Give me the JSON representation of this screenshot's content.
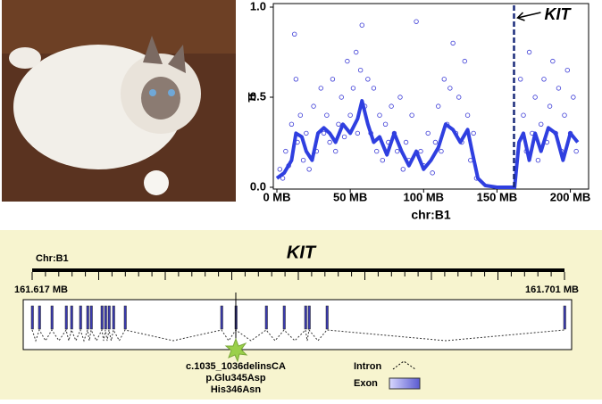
{
  "chart_data": {
    "type": "scatter",
    "xlabel": "chr:B1",
    "ylabel": "π",
    "xlim": [
      0,
      210
    ],
    "ylim": [
      0,
      1
    ],
    "xticks": [
      {
        "value": 0,
        "label": "0 MB"
      },
      {
        "value": 50,
        "label": "50 MB"
      },
      {
        "value": 100,
        "label": "100 MB"
      },
      {
        "value": 150,
        "label": "150 MB"
      },
      {
        "value": 200,
        "label": "200 MB"
      }
    ],
    "yticks": [
      {
        "value": 0,
        "label": "0.0"
      },
      {
        "value": 0.5,
        "label": "0.5"
      },
      {
        "value": 1,
        "label": "1.0"
      }
    ],
    "series": [
      {
        "mode": "points",
        "color": "#3a3ad6",
        "x": [
          2,
          4,
          6,
          8,
          10,
          12,
          13,
          14,
          16,
          18,
          20,
          22,
          25,
          27,
          30,
          32,
          34,
          36,
          38,
          40,
          42,
          44,
          46,
          48,
          50,
          52,
          54,
          55,
          57,
          58,
          60,
          62,
          64,
          66,
          68,
          70,
          72,
          74,
          76,
          78,
          80,
          82,
          84,
          86,
          88,
          90,
          92,
          95,
          98,
          100,
          103,
          106,
          108,
          110,
          112,
          114,
          116,
          118,
          120,
          122,
          124,
          126,
          128,
          130,
          132,
          134,
          136,
          166,
          168,
          170,
          172,
          174,
          176,
          178,
          180,
          182,
          184,
          186,
          188,
          190,
          192,
          194,
          196,
          198,
          200,
          202,
          204
        ],
        "values": [
          0.1,
          0.05,
          0.2,
          0.12,
          0.35,
          0.85,
          0.6,
          0.25,
          0.4,
          0.15,
          0.3,
          0.1,
          0.45,
          0.2,
          0.55,
          0.3,
          0.4,
          0.25,
          0.6,
          0.2,
          0.35,
          0.5,
          0.28,
          0.7,
          0.4,
          0.55,
          0.75,
          0.3,
          0.65,
          0.9,
          0.45,
          0.6,
          0.3,
          0.55,
          0.2,
          0.4,
          0.15,
          0.35,
          0.25,
          0.45,
          0.3,
          0.2,
          0.5,
          0.1,
          0.25,
          0.15,
          0.4,
          0.92,
          0.2,
          0.12,
          0.3,
          0.08,
          0.25,
          0.45,
          0.2,
          0.6,
          0.35,
          0.55,
          0.8,
          0.3,
          0.5,
          0.25,
          0.7,
          0.4,
          0.15,
          0.3,
          0.05,
          0.6,
          0.4,
          0.2,
          0.75,
          0.3,
          0.5,
          0.15,
          0.35,
          0.6,
          0.25,
          0.45,
          0.7,
          0.3,
          0.55,
          0.2,
          0.4,
          0.65,
          0.3,
          0.5,
          0.2
        ]
      },
      {
        "mode": "line",
        "color": "#2f3fe0",
        "x": [
          0,
          5,
          10,
          13,
          17,
          20,
          24,
          28,
          32,
          36,
          40,
          45,
          50,
          55,
          58,
          62,
          66,
          70,
          75,
          80,
          85,
          90,
          95,
          100,
          105,
          110,
          115,
          120,
          125,
          130,
          133,
          137,
          142,
          150,
          158,
          162,
          165,
          168,
          172,
          176,
          180,
          185,
          190,
          195,
          200,
          205
        ],
        "values": [
          0.05,
          0.08,
          0.15,
          0.3,
          0.28,
          0.2,
          0.15,
          0.3,
          0.33,
          0.3,
          0.25,
          0.35,
          0.3,
          0.38,
          0.48,
          0.35,
          0.25,
          0.28,
          0.18,
          0.3,
          0.2,
          0.12,
          0.2,
          0.1,
          0.15,
          0.22,
          0.35,
          0.32,
          0.25,
          0.32,
          0.2,
          0.05,
          0.01,
          0,
          0,
          0,
          0.25,
          0.3,
          0.15,
          0.3,
          0.2,
          0.33,
          0.3,
          0.15,
          0.3,
          0.25
        ]
      }
    ],
    "annotations": [
      {
        "text": "KIT",
        "x": 161.6
      }
    ]
  },
  "diagram": {
    "gene": "KIT",
    "chromosome": "Chr:B1",
    "start": "161.617 MB",
    "end": "161.701 MB",
    "variant": [
      "c.1035_1036delinsCA",
      "p.Glu345Asp",
      "His346Asn"
    ],
    "legend": [
      "Intron",
      "Exon"
    ]
  }
}
